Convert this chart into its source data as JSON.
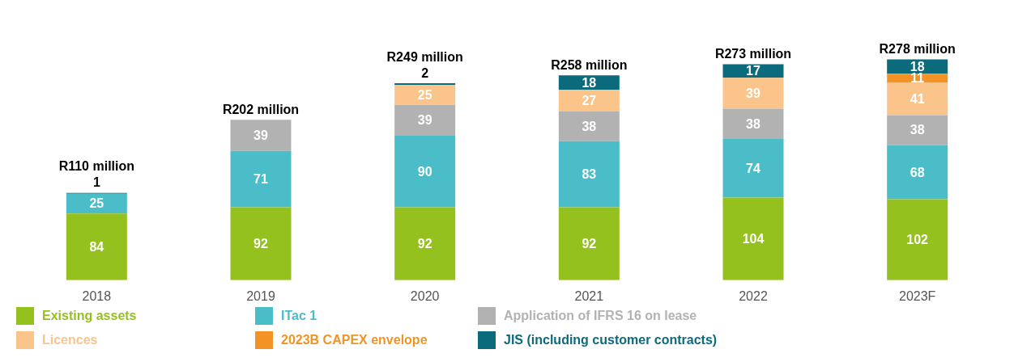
{
  "chart_data": {
    "type": "bar",
    "stacked": true,
    "data_labels": true,
    "legend": "bottom",
    "categories": [
      "2018",
      "2019",
      "2020",
      "2021",
      "2022",
      "2023F"
    ],
    "series": [
      {
        "name": "Existing assets",
        "color": "#95c11f",
        "values": [
          84,
          92,
          92,
          92,
          104,
          102
        ]
      },
      {
        "name": "ITac 1",
        "color": "#4bbdc8",
        "values": [
          25,
          71,
          90,
          83,
          74,
          68
        ]
      },
      {
        "name": "Application of IFRS 16 on lease",
        "color": "#b2b2b2",
        "values": [
          null,
          39,
          39,
          38,
          38,
          38
        ]
      },
      {
        "name": "Licences",
        "color": "#fac48b",
        "values": [
          null,
          null,
          25,
          27,
          39,
          41
        ]
      },
      {
        "name": "2023B CAPEX envelope",
        "color": "#f39325",
        "values": [
          null,
          null,
          null,
          null,
          null,
          11
        ]
      },
      {
        "name": "JIS (including customer contracts)",
        "color": "#0b6b7d",
        "values": [
          1,
          null,
          2,
          18,
          17,
          18
        ]
      }
    ],
    "totals": [
      "R110 million",
      "R202 million",
      "R249 million",
      "R258 million",
      "R273 million",
      "R278 million"
    ]
  }
}
